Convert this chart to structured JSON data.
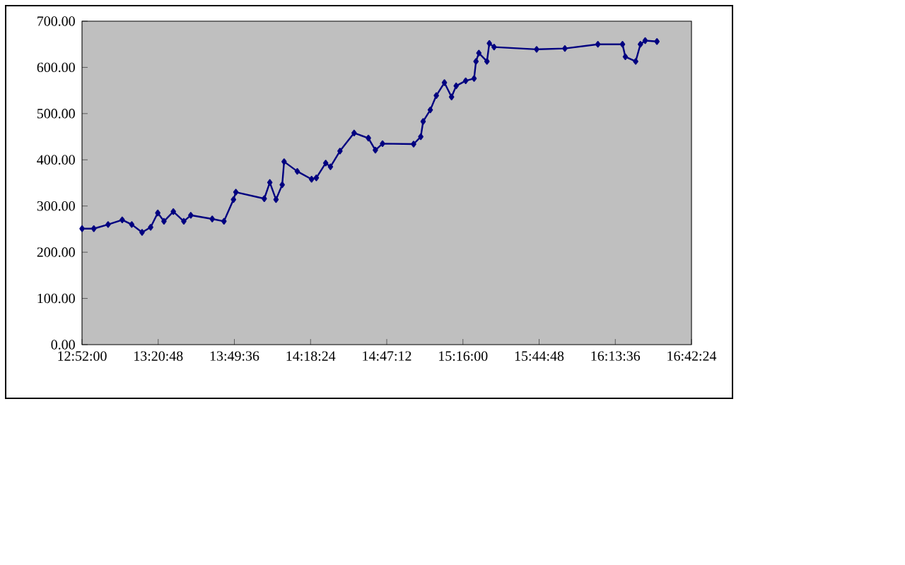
{
  "chart_data": {
    "type": "line",
    "marker": "diamond",
    "line_style": "solid",
    "grid": false,
    "x": [
      12.867,
      12.941,
      13.031,
      13.12,
      13.18,
      13.245,
      13.299,
      13.344,
      13.383,
      13.442,
      13.508,
      13.552,
      13.687,
      13.761,
      13.821,
      13.836,
      14.015,
      14.05,
      14.089,
      14.128,
      14.14,
      14.223,
      14.313,
      14.343,
      14.402,
      14.432,
      14.492,
      14.581,
      14.671,
      14.715,
      14.76,
      14.956,
      15.001,
      15.016,
      15.061,
      15.099,
      15.15,
      15.195,
      15.224,
      15.284,
      15.337,
      15.349,
      15.367,
      15.418,
      15.433,
      15.463,
      15.731,
      15.909,
      16.117,
      16.272,
      16.29,
      16.355,
      16.385,
      16.415,
      16.489
    ],
    "series": [
      {
        "color": "#000080",
        "values": [
          251,
          251,
          260,
          270,
          260,
          243,
          254,
          285,
          267,
          288,
          267,
          280,
          272,
          267,
          314,
          330,
          316,
          351,
          314,
          346,
          396,
          375,
          358,
          361,
          393,
          385,
          419,
          458,
          447,
          421,
          435,
          434,
          450,
          483,
          508,
          539,
          567,
          536,
          560,
          571,
          576,
          613,
          631,
          613,
          652,
          644,
          639,
          641,
          650,
          650,
          623,
          613,
          650,
          658,
          656
        ]
      }
    ],
    "xlim": [
      12.86667,
      16.70667
    ],
    "xticks": [
      {
        "value": 12.86667,
        "label": "12:52:00"
      },
      {
        "value": 13.34667,
        "label": "13:20:48"
      },
      {
        "value": 13.82667,
        "label": "13:49:36"
      },
      {
        "value": 14.30667,
        "label": "14:18:24"
      },
      {
        "value": 14.78667,
        "label": "14:47:12"
      },
      {
        "value": 15.26667,
        "label": "15:16:00"
      },
      {
        "value": 15.74667,
        "label": "15:44:48"
      },
      {
        "value": 16.22667,
        "label": "16:13:36"
      },
      {
        "value": 16.70667,
        "label": "16:42:24"
      }
    ],
    "ylim": [
      0,
      700
    ],
    "yticks": [
      {
        "value": 0,
        "label": "0.00"
      },
      {
        "value": 100,
        "label": "100.00"
      },
      {
        "value": 200,
        "label": "200.00"
      },
      {
        "value": 300,
        "label": "300.00"
      },
      {
        "value": 400,
        "label": "400.00"
      },
      {
        "value": 500,
        "label": "500.00"
      },
      {
        "value": 600,
        "label": "600.00"
      },
      {
        "value": 700,
        "label": "700.00"
      }
    ]
  }
}
